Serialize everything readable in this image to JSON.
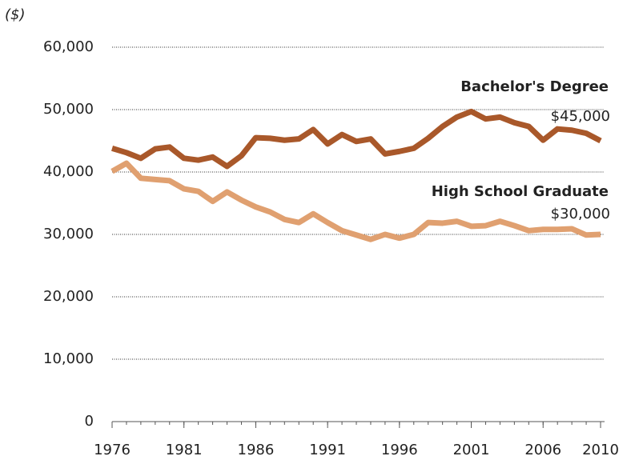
{
  "chart_data": {
    "type": "line",
    "y_label": "($)",
    "x": [
      1976,
      1977,
      1978,
      1979,
      1980,
      1981,
      1982,
      1983,
      1984,
      1985,
      1986,
      1987,
      1988,
      1989,
      1990,
      1991,
      1992,
      1993,
      1994,
      1995,
      1996,
      1997,
      1998,
      1999,
      2000,
      2001,
      2002,
      2003,
      2004,
      2005,
      2006,
      2007,
      2008,
      2009,
      2010
    ],
    "series": [
      {
        "name": "Bachelor's Degree",
        "color": "#a9582a",
        "values": [
          43800,
          43100,
          42200,
          43700,
          44000,
          42200,
          41900,
          42400,
          40900,
          42600,
          45500,
          45400,
          45100,
          45300,
          46800,
          44500,
          46000,
          44900,
          45300,
          42900,
          43300,
          43800,
          45400,
          47300,
          48800,
          49700,
          48500,
          48800,
          47900,
          47300,
          45100,
          46900,
          46700,
          46200,
          45000
        ],
        "value_labels": [
          null,
          null,
          null,
          null,
          null,
          null,
          null,
          null,
          null,
          null,
          null,
          null,
          null,
          null,
          null,
          null,
          null,
          null,
          null,
          null,
          null,
          null,
          null,
          null,
          null,
          null,
          null,
          null,
          null,
          null,
          null,
          null,
          null,
          null,
          "$45,000"
        ]
      },
      {
        "name": "High School Graduate",
        "color": "#e0a070",
        "values": [
          40100,
          41400,
          39000,
          38800,
          38600,
          37300,
          36900,
          35300,
          36800,
          35500,
          34400,
          33600,
          32400,
          31900,
          33300,
          31900,
          30600,
          29900,
          29200,
          30000,
          29400,
          30000,
          31900,
          31800,
          32100,
          31300,
          31400,
          32100,
          31400,
          30600,
          30800,
          30800,
          30900,
          29900,
          30000
        ],
        "value_labels": [
          null,
          null,
          null,
          null,
          null,
          null,
          null,
          null,
          null,
          null,
          null,
          null,
          null,
          null,
          null,
          null,
          null,
          null,
          null,
          null,
          null,
          null,
          null,
          null,
          null,
          null,
          null,
          null,
          null,
          null,
          null,
          null,
          null,
          null,
          "$30,000"
        ]
      }
    ],
    "xlim": [
      1976,
      2010
    ],
    "xticks": [
      1976,
      1981,
      1986,
      1991,
      1996,
      2001,
      2006,
      2010
    ],
    "ylim": [
      0,
      60000
    ],
    "yticks": [
      0,
      {
        "value": 10000,
        "label": "10,000"
      },
      {
        "value": 20000,
        "label": "20,000"
      },
      {
        "value": 30000,
        "label": "30,000"
      },
      {
        "value": 40000,
        "label": "40,000"
      },
      {
        "value": 50000,
        "label": "50,000"
      },
      {
        "value": 60000,
        "label": "60,000"
      }
    ],
    "grid": true
  }
}
